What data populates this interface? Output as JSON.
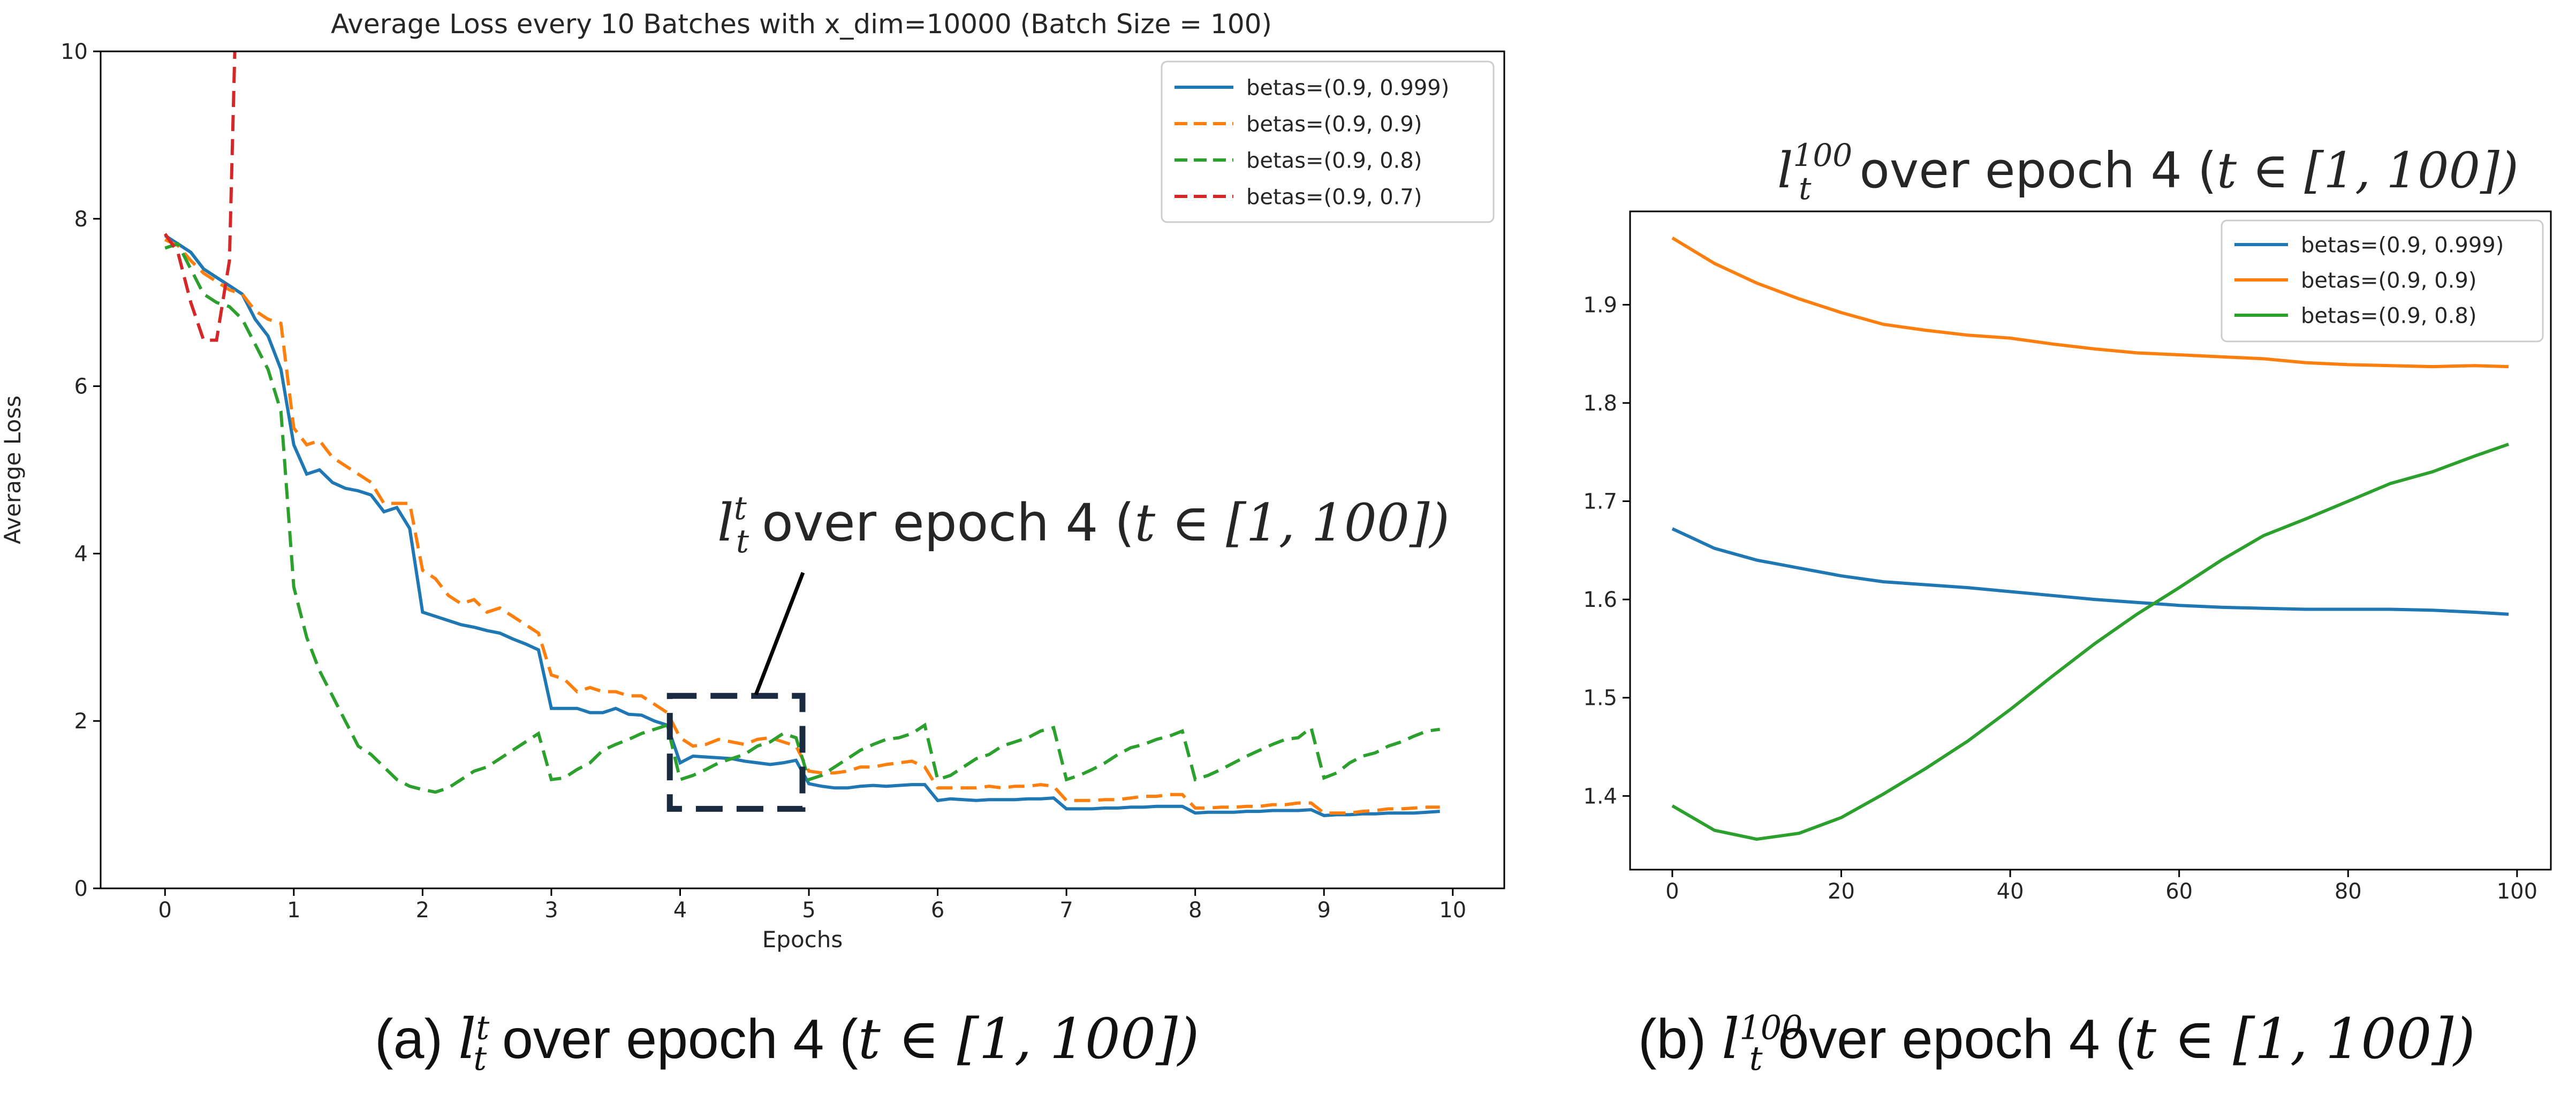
{
  "chart_data": [
    {
      "type": "line",
      "title": "Average Loss every 10 Batches with x_dim=10000 (Batch Size = 100)",
      "xlabel": "Epochs",
      "ylabel": "Average Loss",
      "xlim": [
        -0.5,
        10.4
      ],
      "ylim": [
        0,
        10
      ],
      "xticks": [
        "0",
        "1",
        "2",
        "3",
        "4",
        "5",
        "6",
        "7",
        "8",
        "9",
        "10"
      ],
      "yticks": [
        "0",
        "2",
        "4",
        "6",
        "8",
        "10"
      ],
      "grid": false,
      "legend_position": "top-right",
      "series": [
        {
          "name": "betas=(0.9, 0.999)",
          "color": "#1f77b4",
          "dash": "solid",
          "x": [
            0,
            0.1,
            0.2,
            0.3,
            0.4,
            0.5,
            0.6,
            0.7,
            0.8,
            0.9,
            1.0,
            1.1,
            1.2,
            1.3,
            1.4,
            1.5,
            1.6,
            1.7,
            1.8,
            1.9,
            2.0,
            2.1,
            2.2,
            2.3,
            2.4,
            2.5,
            2.6,
            2.7,
            2.8,
            2.9,
            3.0,
            3.1,
            3.2,
            3.3,
            3.4,
            3.5,
            3.6,
            3.7,
            3.8,
            3.9,
            4.0,
            4.1,
            4.2,
            4.3,
            4.4,
            4.5,
            4.6,
            4.7,
            4.8,
            4.9,
            5.0,
            5.1,
            5.2,
            5.3,
            5.4,
            5.5,
            5.6,
            5.7,
            5.8,
            5.9,
            6.0,
            6.1,
            6.2,
            6.3,
            6.4,
            6.5,
            6.6,
            6.7,
            6.8,
            6.9,
            7.0,
            7.1,
            7.2,
            7.3,
            7.4,
            7.5,
            7.6,
            7.7,
            7.8,
            7.9,
            8.0,
            8.1,
            8.2,
            8.3,
            8.4,
            8.5,
            8.6,
            8.7,
            8.8,
            8.9,
            9.0,
            9.1,
            9.2,
            9.3,
            9.4,
            9.5,
            9.6,
            9.7,
            9.8,
            9.9
          ],
          "y": [
            7.8,
            7.7,
            7.6,
            7.4,
            7.3,
            7.2,
            7.1,
            6.8,
            6.6,
            6.2,
            5.3,
            4.95,
            5.0,
            4.85,
            4.78,
            4.75,
            4.7,
            4.5,
            4.55,
            4.3,
            3.3,
            3.25,
            3.2,
            3.15,
            3.12,
            3.08,
            3.05,
            2.98,
            2.92,
            2.85,
            2.15,
            2.15,
            2.15,
            2.1,
            2.1,
            2.15,
            2.08,
            2.07,
            2.0,
            1.95,
            1.5,
            1.58,
            1.57,
            1.56,
            1.55,
            1.52,
            1.5,
            1.48,
            1.5,
            1.53,
            1.25,
            1.22,
            1.2,
            1.2,
            1.22,
            1.23,
            1.22,
            1.23,
            1.24,
            1.24,
            1.05,
            1.07,
            1.06,
            1.05,
            1.06,
            1.06,
            1.06,
            1.07,
            1.07,
            1.08,
            0.95,
            0.95,
            0.95,
            0.96,
            0.96,
            0.97,
            0.97,
            0.98,
            0.98,
            0.98,
            0.9,
            0.91,
            0.91,
            0.91,
            0.92,
            0.92,
            0.93,
            0.93,
            0.93,
            0.94,
            0.87,
            0.88,
            0.88,
            0.89,
            0.89,
            0.9,
            0.9,
            0.9,
            0.91,
            0.92
          ]
        },
        {
          "name": "betas=(0.9, 0.9)",
          "color": "#ff7f0e",
          "dash": "dashed",
          "x": [
            0,
            0.1,
            0.2,
            0.3,
            0.4,
            0.5,
            0.6,
            0.7,
            0.8,
            0.9,
            1.0,
            1.1,
            1.2,
            1.3,
            1.4,
            1.5,
            1.6,
            1.7,
            1.8,
            1.9,
            2.0,
            2.1,
            2.2,
            2.3,
            2.4,
            2.5,
            2.6,
            2.7,
            2.8,
            2.9,
            3.0,
            3.1,
            3.2,
            3.3,
            3.4,
            3.5,
            3.6,
            3.7,
            3.8,
            3.9,
            4.0,
            4.1,
            4.2,
            4.3,
            4.4,
            4.5,
            4.6,
            4.7,
            4.8,
            4.9,
            5.0,
            5.1,
            5.2,
            5.3,
            5.4,
            5.5,
            5.6,
            5.7,
            5.8,
            5.9,
            6.0,
            6.1,
            6.2,
            6.3,
            6.4,
            6.5,
            6.6,
            6.7,
            6.8,
            6.9,
            7.0,
            7.1,
            7.2,
            7.3,
            7.4,
            7.5,
            7.6,
            7.7,
            7.8,
            7.9,
            8.0,
            8.1,
            8.2,
            8.3,
            8.4,
            8.5,
            8.6,
            8.7,
            8.8,
            8.9,
            9.0,
            9.1,
            9.2,
            9.3,
            9.4,
            9.5,
            9.6,
            9.7,
            9.8,
            9.9
          ],
          "y": [
            7.75,
            7.68,
            7.5,
            7.35,
            7.25,
            7.15,
            7.1,
            6.9,
            6.8,
            6.75,
            5.5,
            5.3,
            5.35,
            5.15,
            5.05,
            4.95,
            4.85,
            4.6,
            4.6,
            4.6,
            3.8,
            3.7,
            3.5,
            3.4,
            3.45,
            3.3,
            3.35,
            3.25,
            3.15,
            3.05,
            2.55,
            2.5,
            2.35,
            2.4,
            2.35,
            2.35,
            2.3,
            2.3,
            2.2,
            2.1,
            1.8,
            1.7,
            1.72,
            1.78,
            1.75,
            1.72,
            1.78,
            1.8,
            1.75,
            1.7,
            1.4,
            1.38,
            1.38,
            1.4,
            1.45,
            1.45,
            1.48,
            1.5,
            1.52,
            1.45,
            1.2,
            1.2,
            1.2,
            1.2,
            1.22,
            1.2,
            1.22,
            1.22,
            1.24,
            1.22,
            1.05,
            1.05,
            1.05,
            1.06,
            1.06,
            1.08,
            1.1,
            1.1,
            1.12,
            1.12,
            0.96,
            0.96,
            0.97,
            0.97,
            0.98,
            0.98,
            1.0,
            1.0,
            1.02,
            1.02,
            0.9,
            0.9,
            0.9,
            0.92,
            0.93,
            0.95,
            0.95,
            0.96,
            0.97,
            0.97
          ]
        },
        {
          "name": "betas=(0.9, 0.8)",
          "color": "#2ca02c",
          "dash": "dashed",
          "x": [
            0,
            0.1,
            0.2,
            0.3,
            0.4,
            0.5,
            0.6,
            0.7,
            0.8,
            0.9,
            1.0,
            1.1,
            1.2,
            1.3,
            1.4,
            1.5,
            1.6,
            1.7,
            1.8,
            1.9,
            2.0,
            2.1,
            2.2,
            2.3,
            2.4,
            2.5,
            2.6,
            2.7,
            2.8,
            2.9,
            3.0,
            3.1,
            3.2,
            3.3,
            3.4,
            3.5,
            3.6,
            3.7,
            3.8,
            3.9,
            4.0,
            4.1,
            4.2,
            4.3,
            4.4,
            4.5,
            4.6,
            4.7,
            4.8,
            4.9,
            5.0,
            5.1,
            5.2,
            5.3,
            5.4,
            5.5,
            5.6,
            5.7,
            5.8,
            5.9,
            6.0,
            6.1,
            6.2,
            6.3,
            6.4,
            6.5,
            6.6,
            6.7,
            6.8,
            6.9,
            7.0,
            7.1,
            7.2,
            7.3,
            7.4,
            7.5,
            7.6,
            7.7,
            7.8,
            7.9,
            8.0,
            8.1,
            8.2,
            8.3,
            8.4,
            8.5,
            8.6,
            8.7,
            8.8,
            8.9,
            9.0,
            9.1,
            9.2,
            9.3,
            9.4,
            9.5,
            9.6,
            9.7,
            9.8,
            9.9
          ],
          "y": [
            7.65,
            7.7,
            7.4,
            7.1,
            7.0,
            6.95,
            6.8,
            6.5,
            6.2,
            5.7,
            3.6,
            3.0,
            2.6,
            2.3,
            2.0,
            1.7,
            1.6,
            1.45,
            1.3,
            1.22,
            1.18,
            1.15,
            1.2,
            1.3,
            1.4,
            1.45,
            1.55,
            1.65,
            1.75,
            1.85,
            1.3,
            1.32,
            1.42,
            1.5,
            1.65,
            1.72,
            1.78,
            1.85,
            1.9,
            1.95,
            1.3,
            1.35,
            1.42,
            1.5,
            1.55,
            1.6,
            1.7,
            1.75,
            1.85,
            1.8,
            1.3,
            1.35,
            1.45,
            1.55,
            1.65,
            1.72,
            1.78,
            1.8,
            1.85,
            1.95,
            1.3,
            1.35,
            1.45,
            1.55,
            1.6,
            1.7,
            1.75,
            1.8,
            1.88,
            1.92,
            1.3,
            1.35,
            1.42,
            1.5,
            1.6,
            1.68,
            1.72,
            1.78,
            1.82,
            1.88,
            1.3,
            1.35,
            1.42,
            1.5,
            1.58,
            1.65,
            1.72,
            1.78,
            1.8,
            1.92,
            1.32,
            1.38,
            1.5,
            1.58,
            1.62,
            1.7,
            1.75,
            1.82,
            1.88,
            1.9
          ]
        },
        {
          "name": "betas=(0.9, 0.7)",
          "color": "#d62728",
          "dash": "dashed",
          "x": [
            0,
            0.1,
            0.2,
            0.3,
            0.4,
            0.5,
            0.55
          ],
          "y": [
            7.82,
            7.6,
            7.0,
            6.55,
            6.55,
            7.5,
            10.5
          ]
        }
      ],
      "annotation": {
        "text": "over epoch 4 (",
        "math_base": "l",
        "math_sup": "t",
        "math_sub": "t",
        "box_x": [
          3.92,
          4.95
        ],
        "box_y": [
          0.95,
          2.3
        ]
      }
    },
    {
      "type": "line",
      "title": "over epoch 4 (",
      "title_math": {
        "base": "l",
        "sup": "100",
        "sub": "t",
        "range": "t ∈ [1, 100])"
      },
      "xlabel": "",
      "ylabel": "",
      "xlim": [
        -5,
        104
      ],
      "ylim": [
        1.325,
        1.995
      ],
      "xticks": [
        "0",
        "20",
        "40",
        "60",
        "80",
        "100"
      ],
      "yticks": [
        "1.4",
        "1.5",
        "1.6",
        "1.7",
        "1.8",
        "1.9"
      ],
      "grid": false,
      "legend_position": "top-right",
      "series": [
        {
          "name": "betas=(0.9, 0.999)",
          "color": "#1f77b4",
          "dash": "solid",
          "x": [
            0,
            5,
            10,
            15,
            20,
            25,
            30,
            35,
            40,
            45,
            50,
            55,
            60,
            65,
            70,
            75,
            80,
            85,
            90,
            95,
            99
          ],
          "y": [
            1.672,
            1.652,
            1.64,
            1.632,
            1.624,
            1.618,
            1.615,
            1.612,
            1.608,
            1.604,
            1.6,
            1.597,
            1.594,
            1.592,
            1.591,
            1.59,
            1.59,
            1.59,
            1.589,
            1.587,
            1.585
          ]
        },
        {
          "name": "betas=(0.9, 0.9)",
          "color": "#ff7f0e",
          "dash": "solid",
          "x": [
            0,
            5,
            10,
            15,
            20,
            25,
            30,
            35,
            40,
            45,
            50,
            55,
            60,
            65,
            70,
            75,
            80,
            85,
            90,
            95,
            99
          ],
          "y": [
            1.968,
            1.942,
            1.922,
            1.906,
            1.892,
            1.88,
            1.874,
            1.869,
            1.866,
            1.86,
            1.855,
            1.851,
            1.849,
            1.847,
            1.845,
            1.841,
            1.839,
            1.838,
            1.837,
            1.838,
            1.837
          ]
        },
        {
          "name": "betas=(0.9, 0.8)",
          "color": "#2ca02c",
          "dash": "solid",
          "x": [
            0,
            5,
            10,
            15,
            20,
            25,
            30,
            35,
            40,
            45,
            50,
            55,
            60,
            65,
            70,
            75,
            80,
            85,
            90,
            95,
            99
          ],
          "y": [
            1.39,
            1.365,
            1.356,
            1.362,
            1.378,
            1.402,
            1.428,
            1.456,
            1.488,
            1.522,
            1.555,
            1.585,
            1.612,
            1.64,
            1.665,
            1.682,
            1.7,
            1.718,
            1.73,
            1.746,
            1.758
          ]
        }
      ]
    }
  ],
  "captions": {
    "a_prefix": "(a)",
    "b_prefix": "(b)",
    "math_base": "l",
    "a_sup": "t",
    "b_sup": "100",
    "sub": "t",
    "text": "over epoch 4 (",
    "range": "t ∈ [1, 100])"
  }
}
